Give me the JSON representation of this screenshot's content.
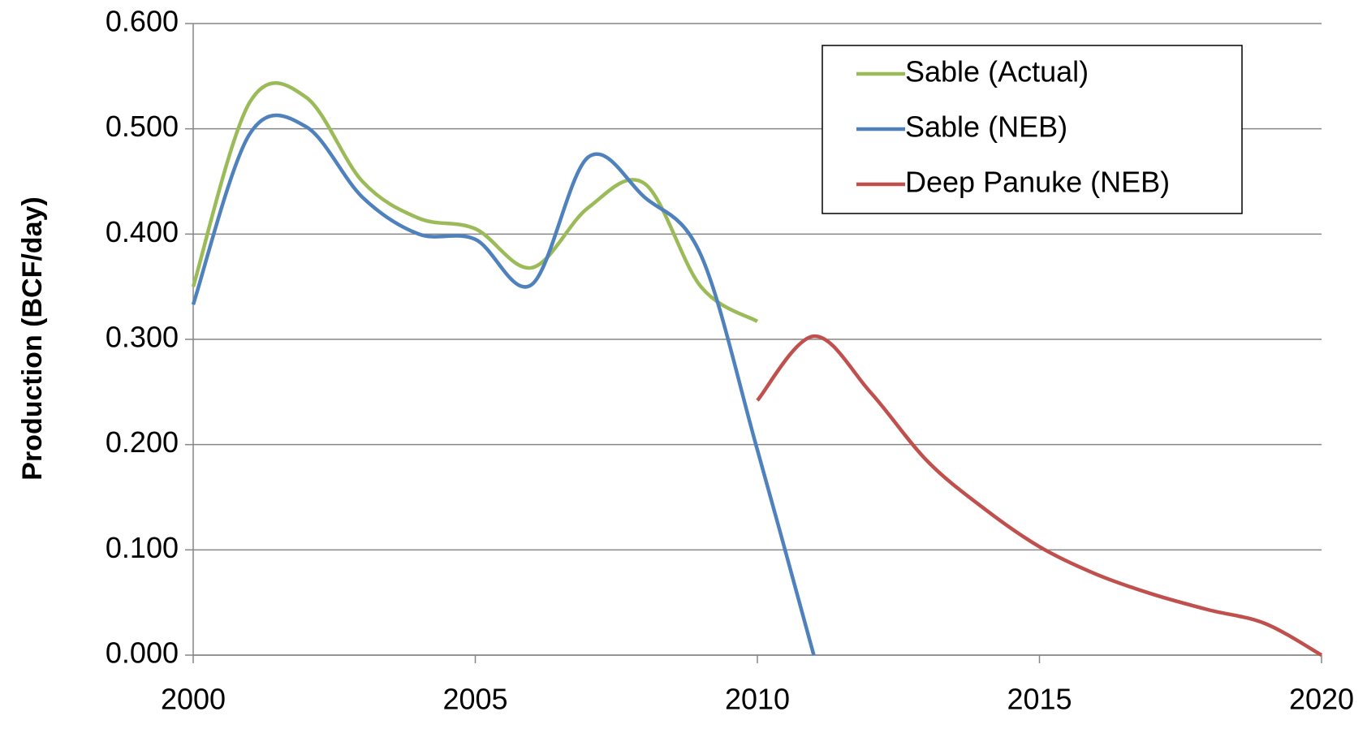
{
  "chart_data": {
    "type": "line",
    "x": [
      2000,
      2001,
      2002,
      2003,
      2004,
      2005,
      2006,
      2007,
      2008,
      2009,
      2010,
      2011,
      2012,
      2013,
      2014,
      2015,
      2016,
      2017,
      2018,
      2019,
      2020
    ],
    "series": [
      {
        "name": "Sable (Actual)",
        "color": "#9bbb59",
        "values": [
          0.35,
          0.525,
          0.53,
          0.45,
          0.415,
          0.405,
          0.368,
          0.425,
          0.448,
          0.35,
          0.317,
          null,
          null,
          null,
          null,
          null,
          null,
          null,
          null,
          null,
          null
        ]
      },
      {
        "name": "Sable (NEB)",
        "color": "#4f81bd",
        "values": [
          0.333,
          0.495,
          0.502,
          0.435,
          0.4,
          0.395,
          0.352,
          0.473,
          0.435,
          0.38,
          0.195,
          0.0,
          null,
          null,
          null,
          null,
          null,
          null,
          null,
          null,
          null
        ]
      },
      {
        "name": "Deep Panuke (NEB)",
        "color": "#c0504d",
        "values": [
          null,
          null,
          null,
          null,
          null,
          null,
          null,
          null,
          null,
          null,
          0.242,
          0.303,
          0.25,
          0.185,
          0.14,
          0.103,
          0.077,
          0.058,
          0.043,
          0.03,
          0.0
        ]
      }
    ],
    "xlim": [
      2000,
      2020
    ],
    "xticks": [
      2000,
      2005,
      2010,
      2015,
      2020
    ],
    "ylim": [
      0,
      0.6
    ],
    "yticks": [
      {
        "value": 0,
        "label": "0.000"
      },
      {
        "value": 0.1,
        "label": "0.100"
      },
      {
        "value": 0.2,
        "label": "0.200"
      },
      {
        "value": 0.3,
        "label": "0.300"
      },
      {
        "value": 0.4,
        "label": "0.400"
      },
      {
        "value": 0.5,
        "label": "0.500"
      },
      {
        "value": 0.6,
        "label": "0.600"
      }
    ],
    "y_label": "Production (BCF/day)",
    "grid": true,
    "legend": "upper right"
  }
}
